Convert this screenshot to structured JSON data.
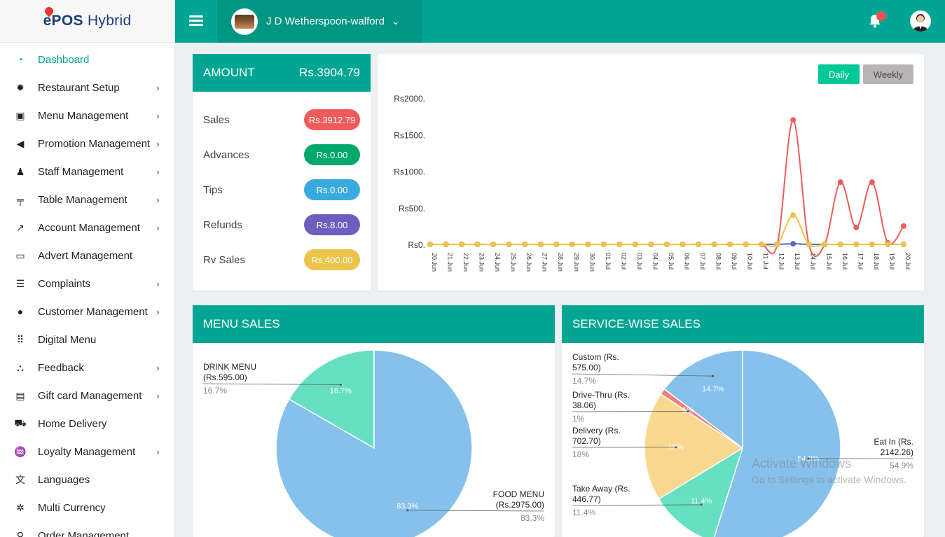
{
  "app": {
    "logo_e": "e",
    "logo_pos": "POS",
    "logo_hybrid": "Hybrid"
  },
  "sidebar": {
    "items": [
      {
        "label": "Dashboard",
        "icon": "gauge-icon",
        "glyph": "◔",
        "chevron": false,
        "active": true
      },
      {
        "label": "Restaurant Setup",
        "icon": "gear-icon",
        "glyph": "✹",
        "chevron": true
      },
      {
        "label": "Menu Management",
        "icon": "menu-book-icon",
        "glyph": "▣",
        "chevron": true
      },
      {
        "label": "Promotion Management",
        "icon": "megaphone-icon",
        "glyph": "◀",
        "chevron": true
      },
      {
        "label": "Staff Management",
        "icon": "users-icon",
        "glyph": "♟",
        "chevron": true
      },
      {
        "label": "Table Management",
        "icon": "table-icon",
        "glyph": "╤",
        "chevron": true
      },
      {
        "label": "Account Management",
        "icon": "chart-up-icon",
        "glyph": "↗",
        "chevron": true
      },
      {
        "label": "Advert Management",
        "icon": "monitor-icon",
        "glyph": "▭",
        "chevron": false
      },
      {
        "label": "Complaints",
        "icon": "document-icon",
        "glyph": "☰",
        "chevron": true
      },
      {
        "label": "Customer Management",
        "icon": "customer-icon",
        "glyph": "●",
        "chevron": true
      },
      {
        "label": "Digital Menu",
        "icon": "grid-icon",
        "glyph": "⠿",
        "chevron": false
      },
      {
        "label": "Feedback",
        "icon": "sitemap-icon",
        "glyph": "⛬",
        "chevron": true
      },
      {
        "label": "Gift card Management",
        "icon": "giftcard-icon",
        "glyph": "▤",
        "chevron": true
      },
      {
        "label": "Home Delivery",
        "icon": "truck-icon",
        "glyph": "⛟",
        "chevron": false
      },
      {
        "label": "Loyalty Management",
        "icon": "handshake-icon",
        "glyph": "♒",
        "chevron": true
      },
      {
        "label": "Languages",
        "icon": "translate-icon",
        "glyph": "文",
        "chevron": false
      },
      {
        "label": "Multi Currency",
        "icon": "currency-icon",
        "glyph": "✲",
        "chevron": false
      },
      {
        "label": "Order Management",
        "icon": "order-icon",
        "glyph": "⚲",
        "chevron": false
      }
    ]
  },
  "header": {
    "store_name": "J D Wetherspoon-walford"
  },
  "amount": {
    "title": "AMOUNT",
    "total": "Rs.3904.79",
    "rows": [
      {
        "label": "Sales",
        "value": "Rs.3912.79",
        "color": "#ef5b5b"
      },
      {
        "label": "Advances",
        "value": "Rs.0.00",
        "color": "#00a86b"
      },
      {
        "label": "Tips",
        "value": "Rs.0.00",
        "color": "#3aa9e0"
      },
      {
        "label": "Refunds",
        "value": "Rs.8.00",
        "color": "#6c5fc0"
      },
      {
        "label": "Rv Sales",
        "value": "Rs.400.00",
        "color": "#eac54a"
      }
    ]
  },
  "line_chart": {
    "daily_label": "Daily",
    "weekly_label": "Weekly",
    "chart_data": {
      "type": "line",
      "x": [
        "20.Jun",
        "21.Jun",
        "22.Jun",
        "23.Jun",
        "24.Jun",
        "25.Jun",
        "26.Jun",
        "27.Jun",
        "28.Jun",
        "29.Jun",
        "30.Jun",
        "01.Jul",
        "02.Jul",
        "03.Jul",
        "04.Jul",
        "05.Jul",
        "06.Jul",
        "07.Jul",
        "08.Jul",
        "09.Jul",
        "10.Jul",
        "11.Jul",
        "12.Jul",
        "13.Jul",
        "14.Jul",
        "15.Jul",
        "16.Jul",
        "17.Jul",
        "18.Jul",
        "19.Jul",
        "20.Jul"
      ],
      "y_ticks": [
        "Rs0.",
        "Rs500.",
        "Rs1000.",
        "Rs1500.",
        "Rs2000."
      ],
      "ylim": [
        0,
        2000
      ],
      "series": [
        {
          "color": "#5c6bc0",
          "values": [
            0,
            0,
            0,
            0,
            0,
            0,
            0,
            0,
            0,
            0,
            0,
            0,
            0,
            0,
            0,
            0,
            0,
            0,
            0,
            0,
            0,
            0,
            0,
            8,
            0,
            0,
            0,
            0,
            0,
            0,
            0
          ]
        },
        {
          "color": "#ea5f57",
          "values": [
            0,
            0,
            0,
            0,
            0,
            0,
            0,
            0,
            0,
            0,
            0,
            0,
            0,
            0,
            0,
            0,
            0,
            0,
            0,
            0,
            0,
            0,
            0,
            1700,
            0,
            0,
            850,
            230,
            850,
            20,
            250
          ]
        },
        {
          "color": "#eac54a",
          "values": [
            0,
            0,
            0,
            0,
            0,
            0,
            0,
            0,
            0,
            0,
            0,
            0,
            0,
            0,
            0,
            0,
            0,
            0,
            0,
            0,
            0,
            0,
            0,
            400,
            0,
            0,
            0,
            0,
            0,
            0,
            0
          ]
        }
      ]
    }
  },
  "menu_sales": {
    "title": "MENU SALES",
    "chart_data": {
      "type": "pie",
      "slices": [
        {
          "name": "DRINK MENU",
          "amount": "(Rs.595.00)",
          "value": 16.7,
          "label": "16.7%",
          "color": "#66e0c2"
        },
        {
          "name": "FOOD MENU",
          "amount": "(Rs.2975.00)",
          "value": 83.3,
          "label": "83.3%",
          "color": "#86c1ec"
        }
      ]
    }
  },
  "service_sales": {
    "title": "SERVICE-WISE SALES",
    "chart_data": {
      "type": "pie",
      "slices": [
        {
          "name": "Eat In (Rs.",
          "amount": "2142.26)",
          "value": 54.9,
          "label": "54.9%",
          "color": "#86c1ec"
        },
        {
          "name": "Take Away (Rs.",
          "amount": "446.77)",
          "value": 11.4,
          "label": "11.4%",
          "color": "#66e0c2"
        },
        {
          "name": "Delivery (Rs.",
          "amount": "702.70)",
          "value": 18,
          "label": "18%",
          "color": "#fad890"
        },
        {
          "name": "Drive-Thru (Rs.",
          "amount": "38.06)",
          "value": 1,
          "label": "1%",
          "color": "#f08080"
        },
        {
          "name": "Custom (Rs.",
          "amount": "575.00)",
          "value": 14.7,
          "label": "14.7%",
          "color": "#86c1ec"
        }
      ]
    }
  },
  "watermark": {
    "line1": "Activate Windows",
    "line2": "Go to Settings to activate Windows."
  }
}
